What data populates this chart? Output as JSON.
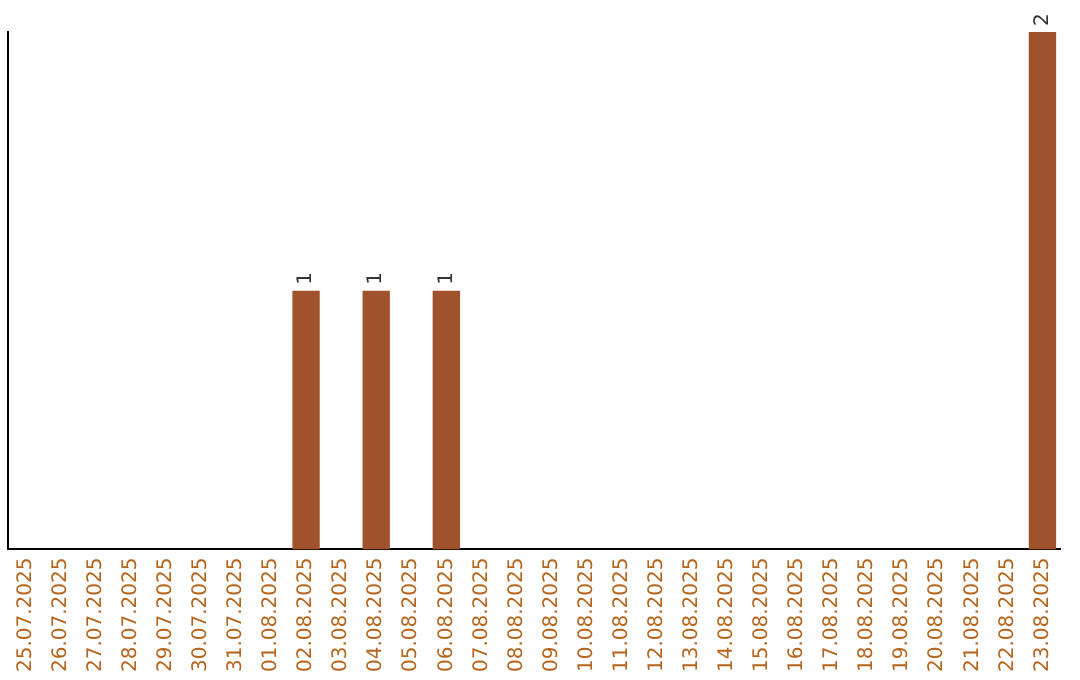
{
  "chart_data": {
    "type": "bar",
    "categories": [
      "25.07.2025",
      "26.07.2025",
      "27.07.2025",
      "28.07.2025",
      "29.07.2025",
      "30.07.2025",
      "31.07.2025",
      "01.08.2025",
      "02.08.2025",
      "03.08.2025",
      "04.08.2025",
      "05.08.2025",
      "06.08.2025",
      "07.08.2025",
      "08.08.2025",
      "09.08.2025",
      "10.08.2025",
      "11.08.2025",
      "12.08.2025",
      "13.08.2025",
      "14.08.2025",
      "15.08.2025",
      "16.08.2025",
      "17.08.2025",
      "18.08.2025",
      "19.08.2025",
      "20.08.2025",
      "21.08.2025",
      "22.08.2025",
      "23.08.2025"
    ],
    "values": [
      0,
      0,
      0,
      0,
      0,
      0,
      0,
      0,
      1,
      0,
      1,
      0,
      1,
      0,
      0,
      0,
      0,
      0,
      0,
      0,
      0,
      0,
      0,
      0,
      0,
      0,
      0,
      0,
      0,
      2
    ],
    "value_labels": [
      null,
      null,
      null,
      null,
      null,
      null,
      null,
      null,
      "1",
      null,
      "1",
      null,
      "1",
      null,
      null,
      null,
      null,
      null,
      null,
      null,
      null,
      null,
      null,
      null,
      null,
      null,
      null,
      null,
      null,
      "2"
    ],
    "color": "#a0522d",
    "grid": false,
    "legend": false,
    "tick_labels": "x"
  }
}
